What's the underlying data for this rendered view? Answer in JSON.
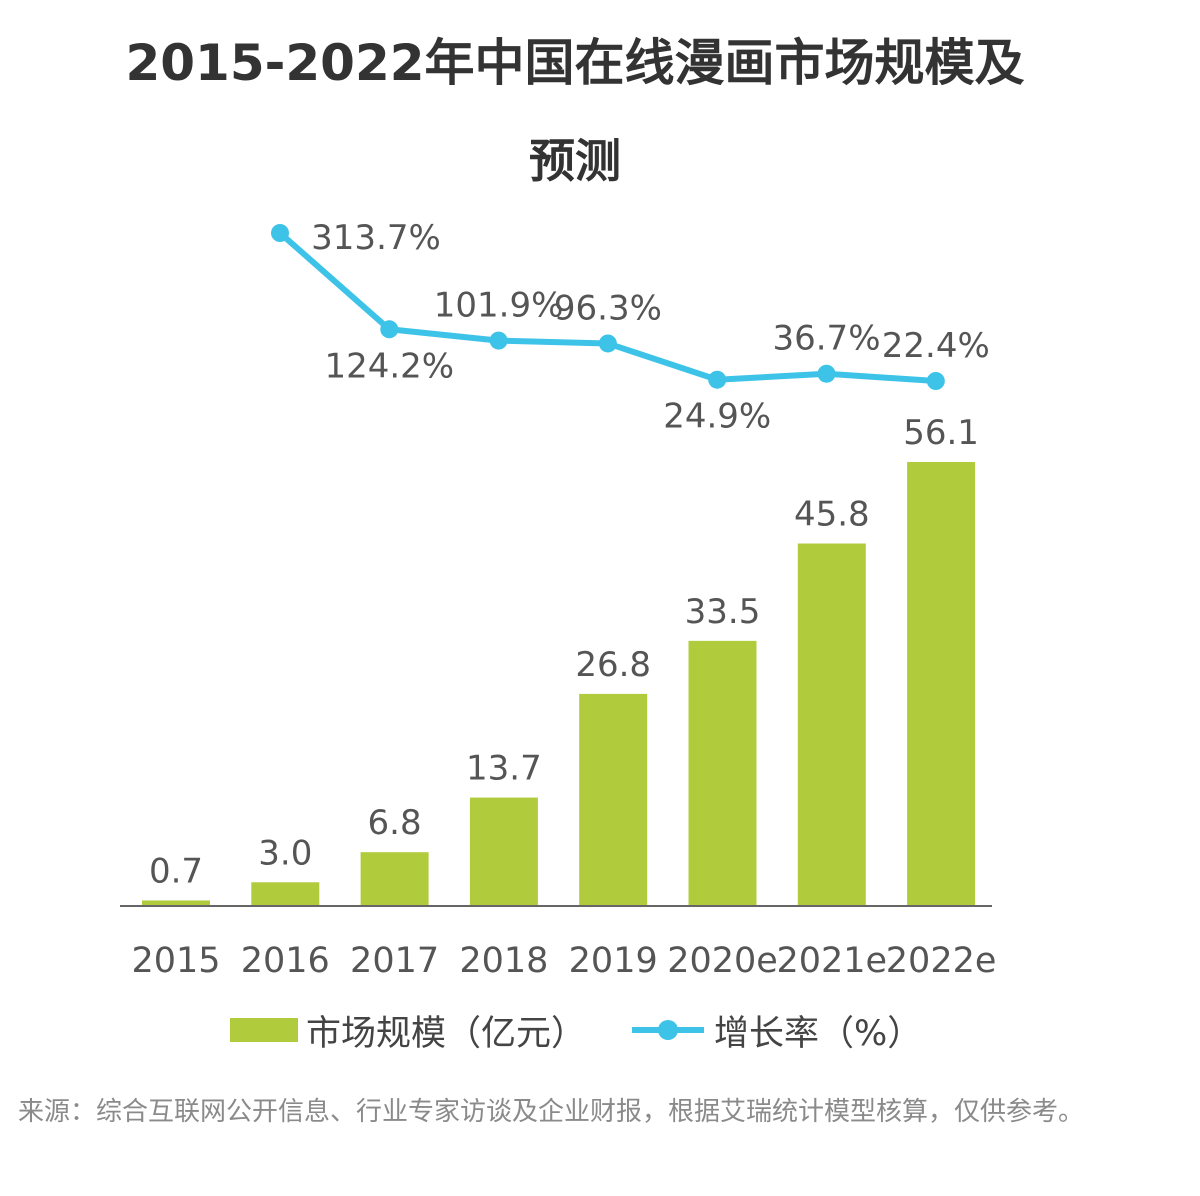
{
  "chart_data": {
    "type": "bar",
    "title": "2015-2022年中国在线漫画市场规模及",
    "subtitle": "预测",
    "categories": [
      "2015",
      "2016",
      "2017",
      "2018",
      "2019",
      "2020e",
      "2021e",
      "2022e"
    ],
    "series": [
      {
        "name": "市场规模（亿元）",
        "type": "bar",
        "color": "#b0cc3d",
        "values": [
          0.7,
          3.0,
          6.8,
          13.7,
          26.8,
          33.5,
          45.8,
          56.1
        ],
        "labels": [
          "0.7",
          "3.0",
          "6.8",
          "13.7",
          "26.8",
          "33.5",
          "45.8",
          "56.1"
        ]
      },
      {
        "name": "增长率（%）",
        "type": "line",
        "color": "#3ec3e8",
        "values": [
          null,
          313.7,
          124.2,
          101.9,
          96.3,
          24.9,
          36.7,
          22.4
        ],
        "labels": [
          "",
          "313.7%",
          "124.2%",
          "101.9%",
          "96.3%",
          "24.9%",
          "36.7%",
          "22.4%"
        ]
      }
    ],
    "grid": false,
    "legend": "bottom",
    "bar_ylim": [
      0,
      56.1
    ]
  },
  "source_note": "来源：综合互联网公开信息、行业专家访谈及企业财报，根据艾瑞统计模型核算，仅供参考。"
}
